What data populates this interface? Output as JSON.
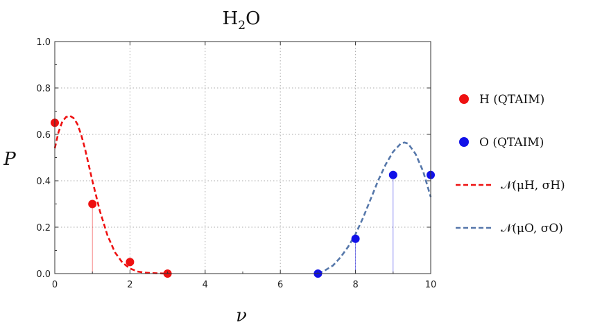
{
  "chart_data": {
    "type": "scatter",
    "title": "H₂O",
    "xlabel": "ν",
    "ylabel": "P",
    "xlim": [
      0,
      10
    ],
    "ylim": [
      0,
      1.0
    ],
    "xticks": [
      0,
      2,
      4,
      6,
      8,
      10
    ],
    "yticks": [
      0.0,
      0.2,
      0.4,
      0.6,
      0.8,
      1.0
    ],
    "xtick_labels": [
      "0",
      "2",
      "4",
      "6",
      "8",
      "10"
    ],
    "ytick_labels": [
      "0.0",
      "0.2",
      "0.4",
      "0.6",
      "0.8",
      "1.0"
    ],
    "grid": true,
    "legend_position": "right",
    "series": [
      {
        "name": "H (QTAIM)",
        "kind": "points",
        "color": "#ee1111",
        "x": [
          0,
          1,
          2,
          3
        ],
        "y": [
          0.65,
          0.3,
          0.05,
          0.0
        ]
      },
      {
        "name": "O (QTAIM)",
        "kind": "points",
        "color": "#1111e8",
        "x": [
          7,
          8,
          9,
          10
        ],
        "y": [
          0.0,
          0.15,
          0.425,
          0.425
        ]
      },
      {
        "name": "𝒩(μH, σH)",
        "kind": "curve",
        "color": "#ee1111",
        "dashed": true,
        "x": [
          0,
          0.1,
          0.2,
          0.3,
          0.4,
          0.5,
          0.6,
          0.7,
          0.8,
          0.9,
          1.0,
          1.2,
          1.4,
          1.6,
          1.8,
          2.0,
          2.2,
          2.4,
          2.6,
          2.8,
          3.0
        ],
        "y": [
          0.54,
          0.61,
          0.655,
          0.675,
          0.68,
          0.67,
          0.645,
          0.6,
          0.54,
          0.47,
          0.4,
          0.27,
          0.165,
          0.092,
          0.047,
          0.022,
          0.009,
          0.004,
          0.002,
          0.001,
          0.0
        ]
      },
      {
        "name": "𝒩(μO, σO)",
        "kind": "curve",
        "color": "#5577aa",
        "dashed": true,
        "x": [
          7.0,
          7.2,
          7.4,
          7.6,
          7.8,
          8.0,
          8.2,
          8.4,
          8.6,
          8.8,
          9.0,
          9.2,
          9.3,
          9.4,
          9.6,
          9.8,
          10.0
        ],
        "y": [
          0.0,
          0.015,
          0.035,
          0.07,
          0.115,
          0.17,
          0.24,
          0.32,
          0.4,
          0.47,
          0.525,
          0.56,
          0.565,
          0.56,
          0.515,
          0.44,
          0.33
        ]
      }
    ],
    "stems": [
      {
        "x": 1,
        "y": 0.3,
        "color": "#ee1111"
      },
      {
        "x": 8,
        "y": 0.15,
        "color": "#1111e8"
      },
      {
        "x": 9,
        "y": 0.425,
        "color": "#1111e8"
      },
      {
        "x": 10,
        "y": 0.425,
        "color": "#1111e8"
      }
    ]
  },
  "legend": {
    "items": [
      {
        "kind": "point",
        "label": "H (QTAIM)",
        "color": "#ee1111"
      },
      {
        "kind": "point",
        "label": "O (QTAIM)",
        "color": "#1111e8"
      },
      {
        "kind": "dash",
        "label": "𝒩(μH, σH)",
        "color": "#ee1111"
      },
      {
        "kind": "dash",
        "label": "𝒩(μO, σO)",
        "color": "#5577aa"
      }
    ]
  }
}
